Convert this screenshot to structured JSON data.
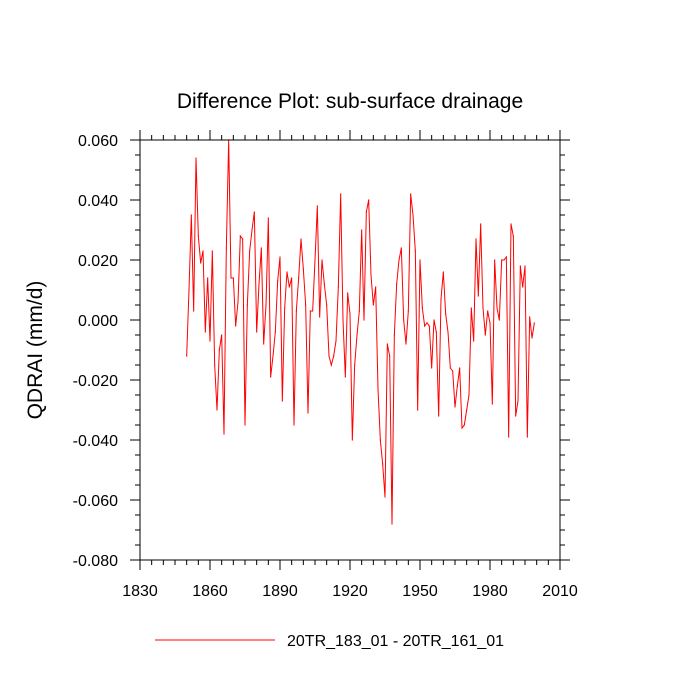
{
  "chart_data": {
    "type": "line",
    "title": "Difference Plot: sub-surface drainage",
    "xlabel": "",
    "ylabel": "QDRAI  (mm/d)",
    "xlim": [
      1830,
      2010
    ],
    "ylim": [
      -0.08,
      0.06
    ],
    "x_ticks": [
      1830,
      1860,
      1890,
      1920,
      1950,
      1980,
      2010
    ],
    "x_tick_labels": [
      "1830",
      "1860",
      "1890",
      "1920",
      "1950",
      "1980",
      "2010"
    ],
    "y_ticks": [
      -0.08,
      -0.06,
      -0.04,
      -0.02,
      0.0,
      0.02,
      0.04,
      0.06
    ],
    "y_tick_labels": [
      "-0.080",
      "-0.060",
      "-0.040",
      "-0.020",
      "0.000",
      "0.020",
      "0.040",
      "0.060"
    ],
    "grid": false,
    "legend_position": "bottom-center",
    "series": [
      {
        "name": "20TR_183_01 - 20TR_161_01",
        "color": "#ff0000",
        "x_start": 1850,
        "x_step": 1,
        "values": [
          -0.012,
          0.01,
          0.035,
          0.003,
          0.054,
          0.028,
          0.019,
          0.023,
          -0.004,
          0.014,
          -0.007,
          0.023,
          -0.015,
          -0.03,
          -0.01,
          -0.005,
          -0.038,
          0.024,
          0.06,
          0.014,
          0.014,
          -0.002,
          0.006,
          0.028,
          0.027,
          -0.035,
          0.005,
          0.023,
          0.03,
          0.036,
          -0.004,
          0.012,
          0.024,
          -0.008,
          0.005,
          0.034,
          -0.019,
          -0.012,
          -0.004,
          0.013,
          0.021,
          -0.027,
          0.004,
          0.016,
          0.011,
          0.014,
          -0.035,
          0.003,
          0.014,
          0.027,
          0.017,
          0.005,
          -0.031,
          0.003,
          0.003,
          0.02,
          0.038,
          0.001,
          0.02,
          0.012,
          0.005,
          -0.012,
          -0.015,
          -0.012,
          -0.007,
          0.011,
          0.042,
          0.0,
          -0.019,
          0.009,
          0.002,
          -0.04,
          -0.015,
          -0.005,
          0.003,
          0.03,
          0.0,
          0.036,
          0.04,
          0.015,
          0.005,
          0.011,
          -0.023,
          -0.04,
          -0.048,
          -0.059,
          -0.008,
          -0.012,
          -0.068,
          -0.005,
          0.012,
          0.02,
          0.024,
          0.0,
          -0.008,
          0.003,
          0.042,
          0.035,
          0.023,
          -0.03,
          0.02,
          0.004,
          -0.002,
          -0.001,
          -0.002,
          -0.016,
          0.0,
          -0.004,
          -0.032,
          0.007,
          0.016,
          0.002,
          -0.004,
          -0.016,
          -0.017,
          -0.029,
          -0.022,
          -0.016,
          -0.036,
          -0.035,
          -0.03,
          -0.025,
          0.004,
          -0.007,
          0.027,
          0.008,
          0.032,
          0.004,
          -0.005,
          0.003,
          -0.001,
          -0.028,
          0.02,
          0.004,
          0.0,
          0.02,
          0.02,
          0.021,
          -0.039,
          0.032,
          0.028,
          -0.032,
          -0.027,
          0.018,
          0.011,
          0.018,
          -0.039,
          0.001,
          -0.006,
          -0.001
        ]
      }
    ]
  }
}
